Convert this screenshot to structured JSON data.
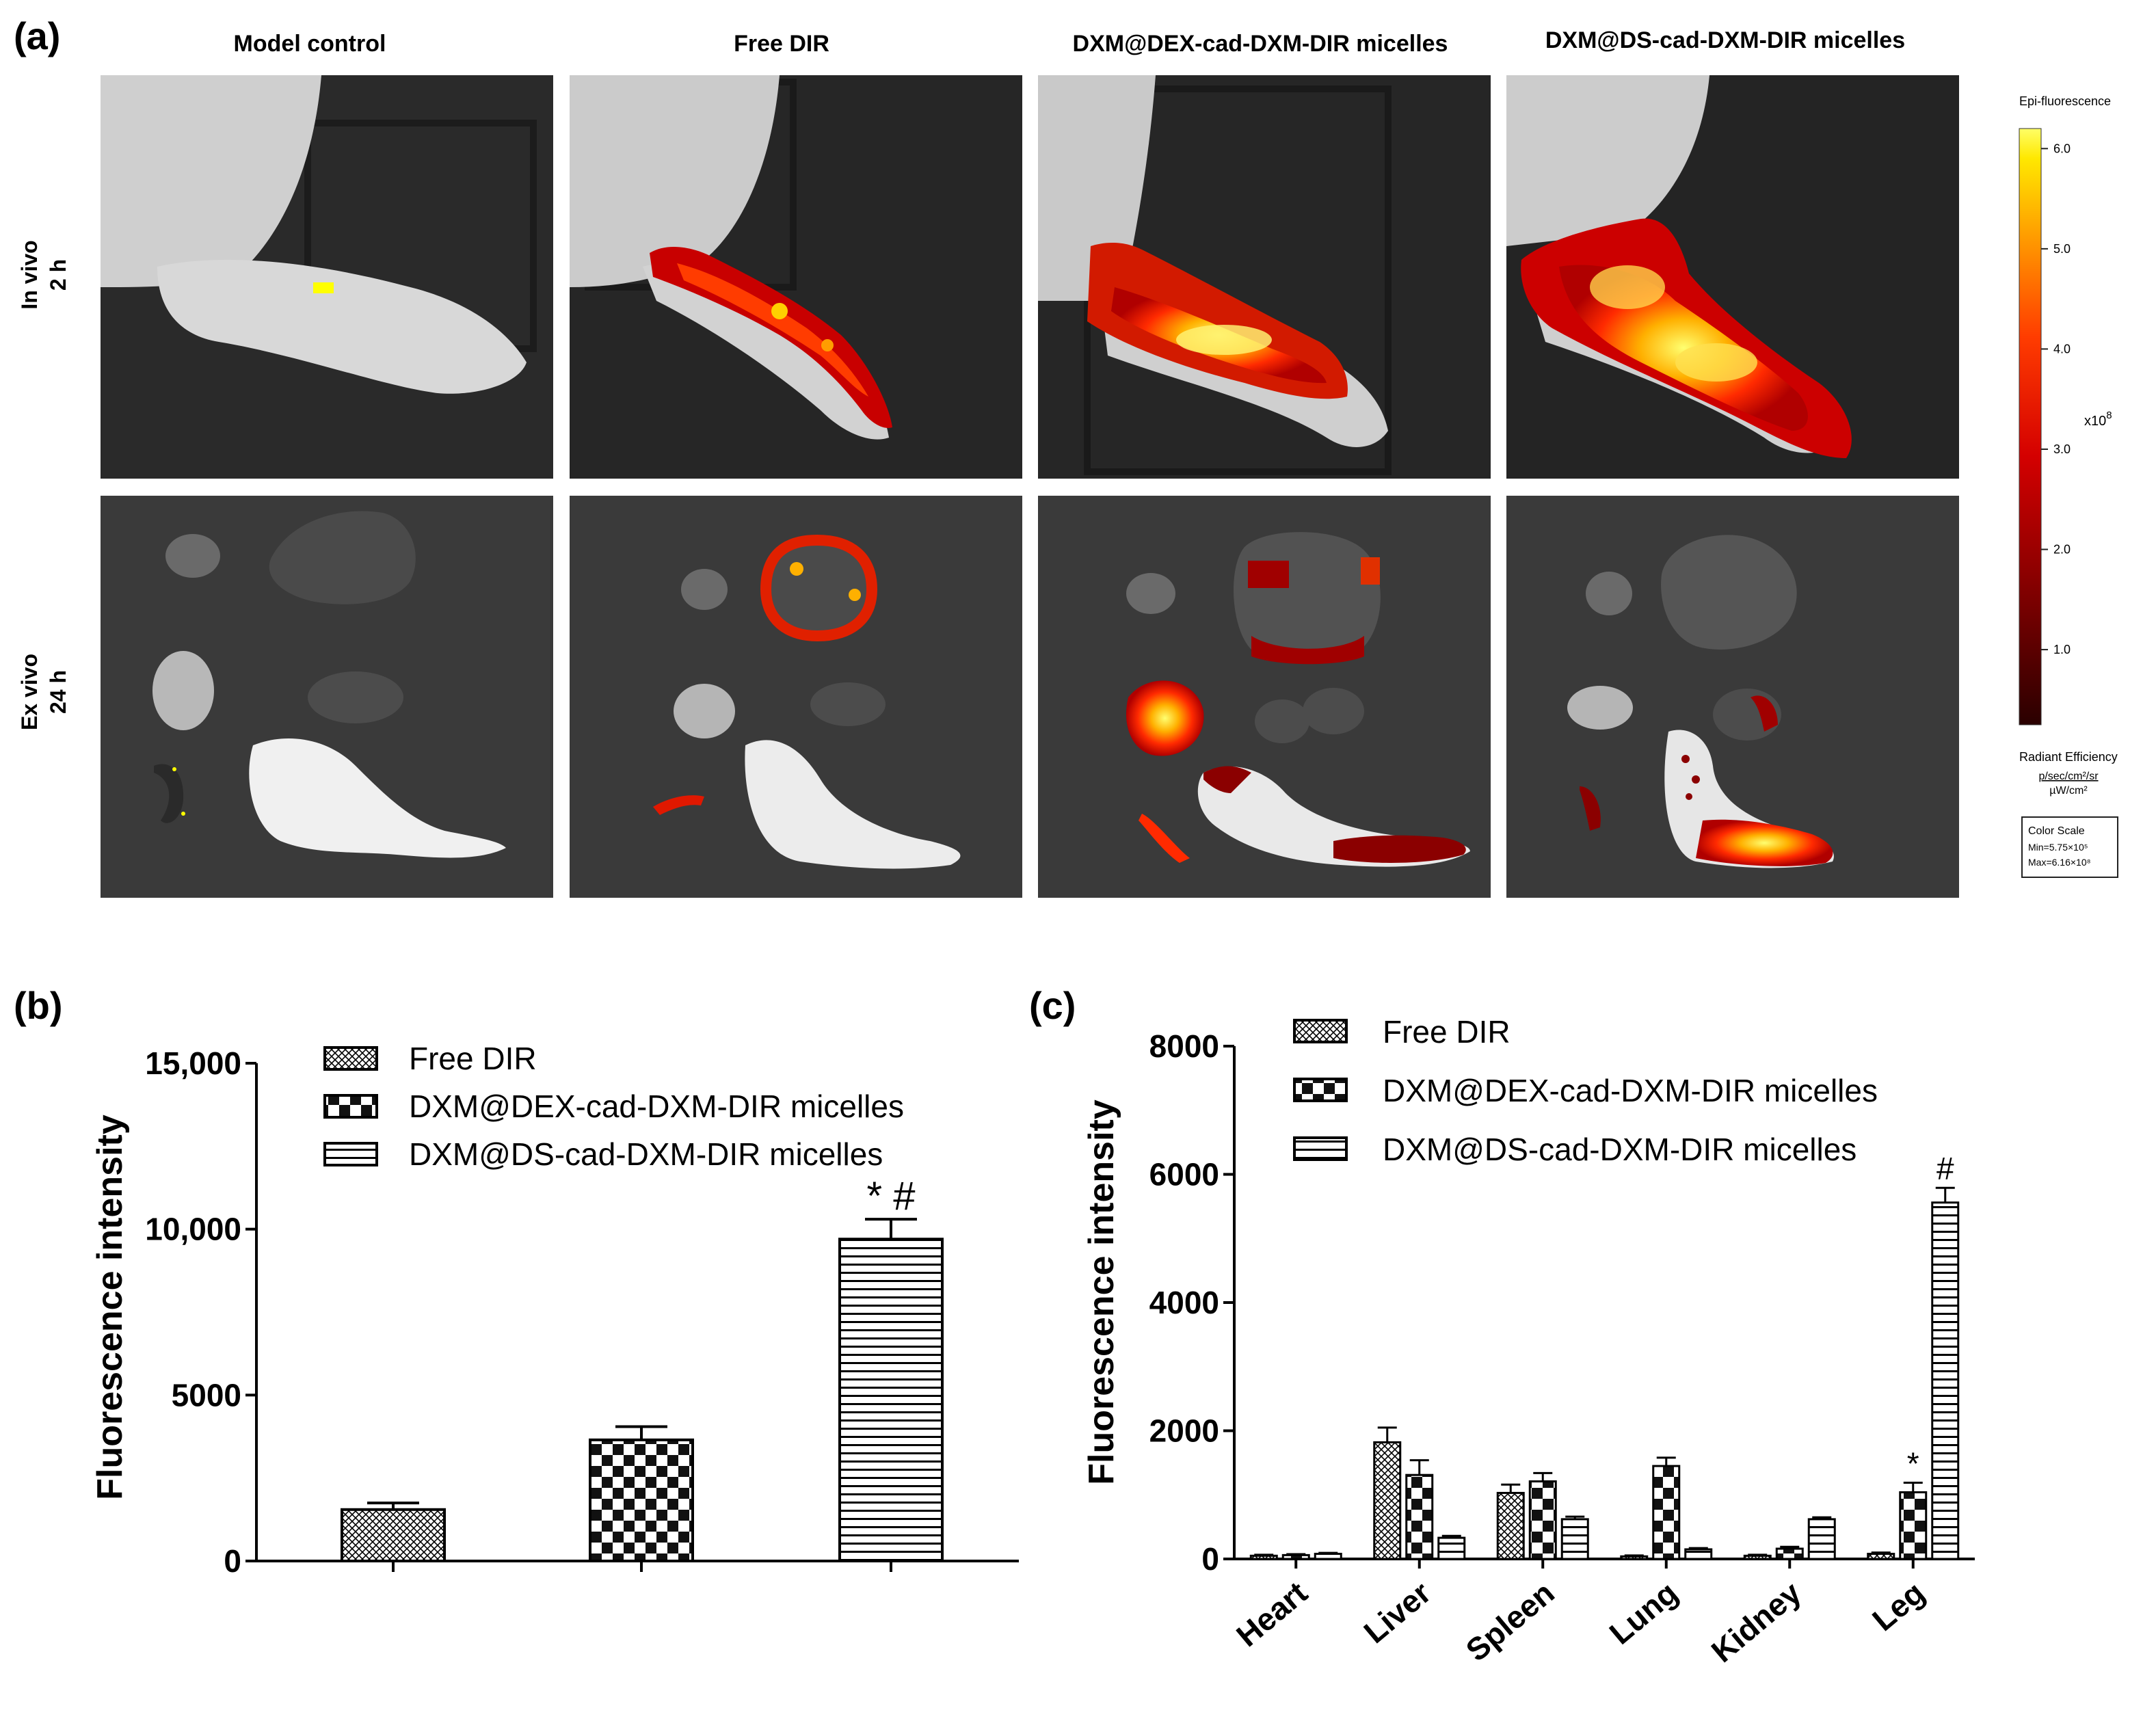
{
  "panel_a": {
    "label": "(a)",
    "columns": [
      "Model control",
      "Free DIR",
      "DXM@DEX-cad-DXM-DIR micelles",
      "DXM@DS-cad-DXM-DIR micelles"
    ],
    "rows": [
      {
        "line1": "In vivo",
        "line2": "2 h"
      },
      {
        "line1": "Ex vivo",
        "line2": "24 h"
      }
    ],
    "colorbar": {
      "title": "Epi-fluorescence",
      "ticks": [
        "6.0",
        "5.0",
        "4.0",
        "3.0",
        "2.0",
        "1.0"
      ],
      "tick_values": [
        6.0,
        5.0,
        4.0,
        3.0,
        2.0,
        1.0
      ],
      "multiplier": "x10",
      "exponent": "8",
      "unit_title": "Radiant Efficiency",
      "unit_numerator": "p/sec/cm²/sr",
      "unit_denominator": "µW/cm²",
      "scale_title": "Color Scale",
      "scale_min": "Min=5.75×10⁵",
      "scale_max": "Max=6.16×10⁸",
      "colors": [
        "#3a0000",
        "#8b0000",
        "#d40000",
        "#ff3c00",
        "#ff9d00",
        "#ffe800",
        "#ffff66"
      ]
    },
    "images": {
      "in_vivo": [
        {
          "signal": "minimal"
        },
        {
          "signal": "moderate"
        },
        {
          "signal": "strong"
        },
        {
          "signal": "strong"
        }
      ]
    }
  },
  "chart_data": [
    {
      "panel": "(b)",
      "type": "bar",
      "ylabel": "Fluorescence intensity",
      "ylim": [
        0,
        15000
      ],
      "yticks": [
        "0",
        "5000",
        "10,000",
        "15,000"
      ],
      "ytick_values": [
        0,
        5000,
        10000,
        15000
      ],
      "legend": [
        "Free DIR",
        "DXM@DEX-cad-DXM-DIR micelles",
        "DXM@DS-cad-DXM-DIR micelles"
      ],
      "legend_position": "top-left",
      "bars": [
        {
          "series": "Free DIR",
          "value": 1550,
          "error": 200,
          "pattern": "crosshatch"
        },
        {
          "series": "DXM@DEX-cad-DXM-DIR micelles",
          "value": 3650,
          "error": 400,
          "pattern": "checker"
        },
        {
          "series": "DXM@DS-cad-DXM-DIR micelles",
          "value": 9700,
          "error": 600,
          "pattern": "horizontal",
          "annotation": "* #"
        }
      ]
    },
    {
      "panel": "(c)",
      "type": "bar",
      "ylabel": "Fluorescence intensity",
      "ylim": [
        0,
        8000
      ],
      "yticks": [
        "0",
        "2000",
        "4000",
        "6000",
        "8000"
      ],
      "ytick_values": [
        0,
        2000,
        4000,
        6000,
        8000
      ],
      "categories": [
        "Heart",
        "Liver",
        "Spleen",
        "Lung",
        "Kidney",
        "Leg"
      ],
      "legend_position": "top-left",
      "series": [
        {
          "name": "Free DIR",
          "pattern": "crosshatch",
          "values": [
            50,
            1820,
            1030,
            40,
            50,
            80
          ],
          "errors": [
            15,
            230,
            130,
            15,
            15,
            20
          ]
        },
        {
          "name": "DXM@DEX-cad-DXM-DIR micelles",
          "pattern": "checker",
          "values": [
            60,
            1310,
            1210,
            1450,
            160,
            1040
          ],
          "errors": [
            15,
            230,
            130,
            130,
            30,
            150
          ]
        },
        {
          "name": "DXM@DS-cad-DXM-DIR micelles",
          "pattern": "horizontal",
          "values": [
            80,
            330,
            620,
            150,
            620,
            5560
          ],
          "errors": [
            15,
            30,
            40,
            20,
            30,
            230
          ]
        }
      ],
      "annotations": [
        {
          "category": "Leg",
          "series": "DXM@DEX-cad-DXM-DIR micelles",
          "text": "*"
        },
        {
          "category": "Leg",
          "series": "DXM@DS-cad-DXM-DIR micelles",
          "text": "#"
        }
      ]
    }
  ]
}
